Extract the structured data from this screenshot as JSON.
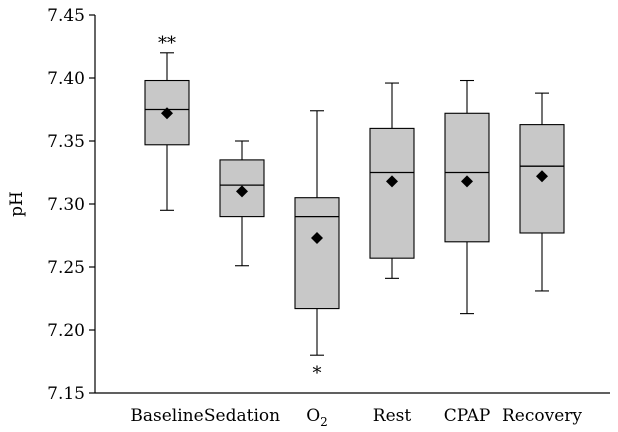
{
  "chart_data": {
    "type": "box",
    "ylabel": "pH",
    "ylim": [
      7.15,
      7.45
    ],
    "yticks": [
      7.15,
      7.2,
      7.25,
      7.3,
      7.35,
      7.4,
      7.45
    ],
    "ytick_labels": [
      "7.15",
      "7.20",
      "7.25",
      "7.30",
      "7.35",
      "7.40",
      "7.45"
    ],
    "categories": [
      "Baseline",
      "Sedation",
      "O2",
      "Rest",
      "CPAP",
      "Recovery"
    ],
    "category_display": [
      {
        "main": "Baseline",
        "sub": ""
      },
      {
        "main": "Sedation",
        "sub": ""
      },
      {
        "main": "O",
        "sub": "2"
      },
      {
        "main": "Rest",
        "sub": ""
      },
      {
        "main": "CPAP",
        "sub": ""
      },
      {
        "main": "Recovery",
        "sub": ""
      }
    ],
    "boxes": [
      {
        "name": "Baseline",
        "whisker_low": 7.295,
        "q1": 7.347,
        "median": 7.375,
        "q3": 7.398,
        "whisker_high": 7.42,
        "mean": 7.372
      },
      {
        "name": "Sedation",
        "whisker_low": 7.251,
        "q1": 7.29,
        "median": 7.315,
        "q3": 7.335,
        "whisker_high": 7.35,
        "mean": 7.31
      },
      {
        "name": "O2",
        "whisker_low": 7.18,
        "q1": 7.217,
        "median": 7.29,
        "q3": 7.305,
        "whisker_high": 7.374,
        "mean": 7.273
      },
      {
        "name": "Rest",
        "whisker_low": 7.241,
        "q1": 7.257,
        "median": 7.325,
        "q3": 7.36,
        "whisker_high": 7.396,
        "mean": 7.318
      },
      {
        "name": "CPAP",
        "whisker_low": 7.213,
        "q1": 7.27,
        "median": 7.325,
        "q3": 7.372,
        "whisker_high": 7.398,
        "mean": 7.318
      },
      {
        "name": "Recovery",
        "whisker_low": 7.231,
        "q1": 7.277,
        "median": 7.33,
        "q3": 7.363,
        "whisker_high": 7.388,
        "mean": 7.322
      }
    ],
    "annotations": [
      {
        "category": "Baseline",
        "text": "**",
        "position": "above"
      },
      {
        "category": "O2",
        "text": "*",
        "position": "below"
      }
    ],
    "box_fill": "#c8c8c8",
    "line_color": "#000000",
    "mean_marker": "diamond",
    "grid": false
  }
}
